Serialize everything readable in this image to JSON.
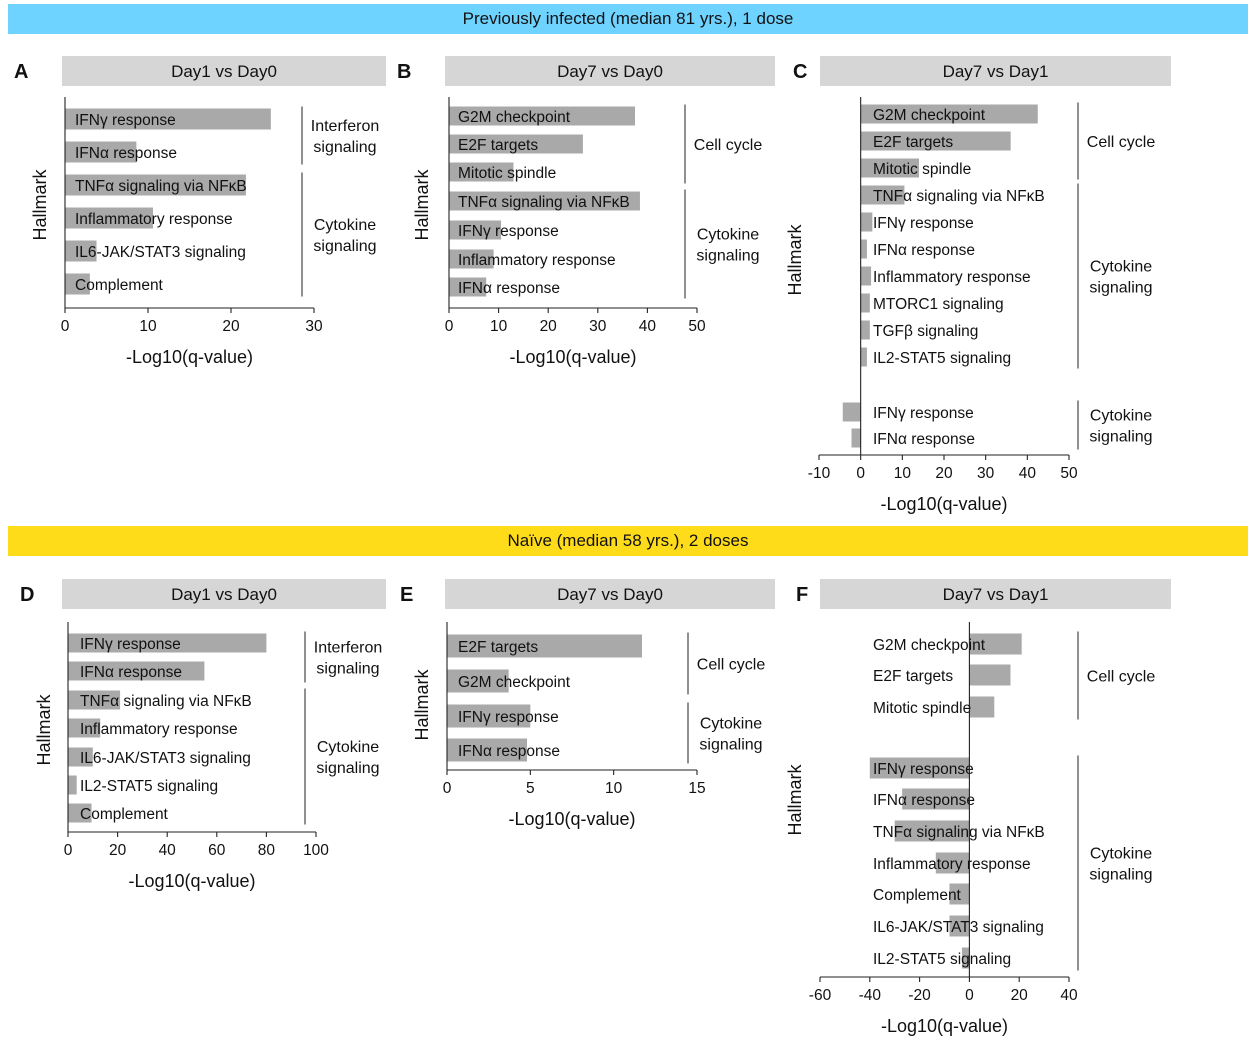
{
  "banners": {
    "top": "Previously infected (median 81 yrs.), 1 dose",
    "bottom": "Naïve (median 58 yrs.), 2 doses"
  },
  "colors": {
    "bar": "#a9a9a9",
    "title_bg": "#d6d6d6",
    "banner_top": "#6fd3ff",
    "banner_bottom": "#ffdc1a"
  },
  "chart_data": [
    {
      "id": "A",
      "letter": "A",
      "type": "bar",
      "orientation": "horizontal",
      "title": "Day1 vs Day0",
      "xlabel": "-Log10(q-value)",
      "ylabel": "Hallmark",
      "xlim": [
        0,
        30
      ],
      "xticks": [
        "0",
        "10",
        "20",
        "30"
      ],
      "categories": [
        "IFNγ response",
        "IFNα response",
        "TNFα signaling via NFκB",
        "Inflammatory response",
        "IL6-JAK/STAT3 signaling",
        "Complement"
      ],
      "values": [
        24.8,
        8.6,
        21.8,
        10.6,
        3.8,
        3.0
      ],
      "groups": [
        {
          "label": [
            "Interferon",
            "signaling"
          ],
          "from": 0,
          "to": 1
        },
        {
          "label": [
            "Cytokine",
            "signaling"
          ],
          "from": 2,
          "to": 5
        }
      ]
    },
    {
      "id": "B",
      "letter": "B",
      "type": "bar",
      "orientation": "horizontal",
      "title": "Day7 vs Day0",
      "xlabel": "-Log10(q-value)",
      "ylabel": "Hallmark",
      "xlim": [
        0,
        50
      ],
      "xticks": [
        "0",
        "10",
        "20",
        "30",
        "40",
        "50"
      ],
      "categories": [
        "G2M checkpoint",
        "E2F targets",
        "Mitotic spindle",
        "TNFα signaling via NFκB",
        "IFNγ response",
        "Inflammatory response",
        "IFNα response"
      ],
      "values": [
        37.5,
        27,
        13,
        38.5,
        10.5,
        9,
        7.5
      ],
      "groups": [
        {
          "label": [
            "Cell cycle"
          ],
          "from": 0,
          "to": 2
        },
        {
          "label": [
            "Cytokine",
            "signaling"
          ],
          "from": 3,
          "to": 6
        }
      ]
    },
    {
      "id": "C",
      "letter": "C",
      "type": "bar",
      "orientation": "horizontal",
      "title": "Day7 vs Day1",
      "xlabel": "-Log10(q-value)",
      "ylabel": "Hallmark",
      "xlim": [
        -10,
        50
      ],
      "xticks": [
        "-10",
        "0",
        "10",
        "20",
        "30",
        "40",
        "50"
      ],
      "categories": [
        "G2M checkpoint",
        "E2F targets",
        "Mitotic spindle",
        "TNFα signaling via NFκB",
        "IFNγ response",
        "IFNα response",
        "Inflammatory response",
        "MTORC1 signaling",
        "TGFβ signaling",
        "IL2-STAT5 signaling",
        "IFNγ response",
        "IFNα response"
      ],
      "values": [
        42.5,
        36,
        14,
        10.5,
        2.8,
        1.5,
        2.5,
        2.2,
        2.2,
        1.5,
        -4.3,
        -2.2
      ],
      "groups": [
        {
          "label": [
            "Cell cycle"
          ],
          "from": 0,
          "to": 2
        },
        {
          "label": [
            "Cytokine",
            "signaling"
          ],
          "from": 3,
          "to": 9
        },
        {
          "label": [
            "Cytokine",
            "signaling"
          ],
          "from": 10,
          "to": 11
        }
      ]
    },
    {
      "id": "D",
      "letter": "D",
      "type": "bar",
      "orientation": "horizontal",
      "title": "Day1 vs Day0",
      "xlabel": "-Log10(q-value)",
      "ylabel": "Hallmark",
      "xlim": [
        0,
        100
      ],
      "xticks": [
        "0",
        "20",
        "40",
        "60",
        "80",
        "100"
      ],
      "categories": [
        "IFNγ response",
        "IFNα response",
        "TNFα signaling via NFκB",
        "Inflammatory response",
        "IL6-JAK/STAT3 signaling",
        "IL2-STAT5 signaling",
        "Complement"
      ],
      "values": [
        80,
        55,
        21,
        13,
        10,
        3.5,
        9.5
      ],
      "groups": [
        {
          "label": [
            "Interferon",
            "signaling"
          ],
          "from": 0,
          "to": 1
        },
        {
          "label": [
            "Cytokine",
            "signaling"
          ],
          "from": 2,
          "to": 6
        }
      ]
    },
    {
      "id": "E",
      "letter": "E",
      "type": "bar",
      "orientation": "horizontal",
      "title": "Day7 vs Day0",
      "xlabel": "-Log10(q-value)",
      "ylabel": "Hallmark",
      "xlim": [
        0,
        15
      ],
      "xticks": [
        "0",
        "5",
        "10",
        "15"
      ],
      "categories": [
        "E2F targets",
        "G2M checkpoint",
        "IFNγ response",
        "IFNα response"
      ],
      "values": [
        11.7,
        3.7,
        5,
        4.8
      ],
      "groups": [
        {
          "label": [
            "Cell cycle"
          ],
          "from": 0,
          "to": 1
        },
        {
          "label": [
            "Cytokine",
            "signaling"
          ],
          "from": 2,
          "to": 3
        }
      ]
    },
    {
      "id": "F",
      "letter": "F",
      "type": "bar",
      "orientation": "horizontal",
      "title": "Day7 vs Day1",
      "xlabel": "-Log10(q-value)",
      "ylabel": "Hallmark",
      "xlim": [
        -60,
        40
      ],
      "xticks": [
        "-60",
        "-40",
        "-20",
        "0",
        "20",
        "40"
      ],
      "categories": [
        "G2M checkpoint",
        "E2F targets",
        "Mitotic spindle",
        "IFNγ response",
        "IFNα response",
        "TNFα signaling via NFκB",
        "Inflammatory response",
        "Complement",
        "IL6-JAK/STAT3 signaling",
        "IL2-STAT5 signaling"
      ],
      "values": [
        21,
        16.5,
        10,
        -40,
        -27,
        -30,
        -13.5,
        -8,
        -8,
        -3
      ],
      "groups": [
        {
          "label": [
            "Cell cycle"
          ],
          "from": 0,
          "to": 2
        },
        {
          "label": [
            "Cytokine",
            "signaling"
          ],
          "from": 3,
          "to": 9
        }
      ]
    }
  ]
}
